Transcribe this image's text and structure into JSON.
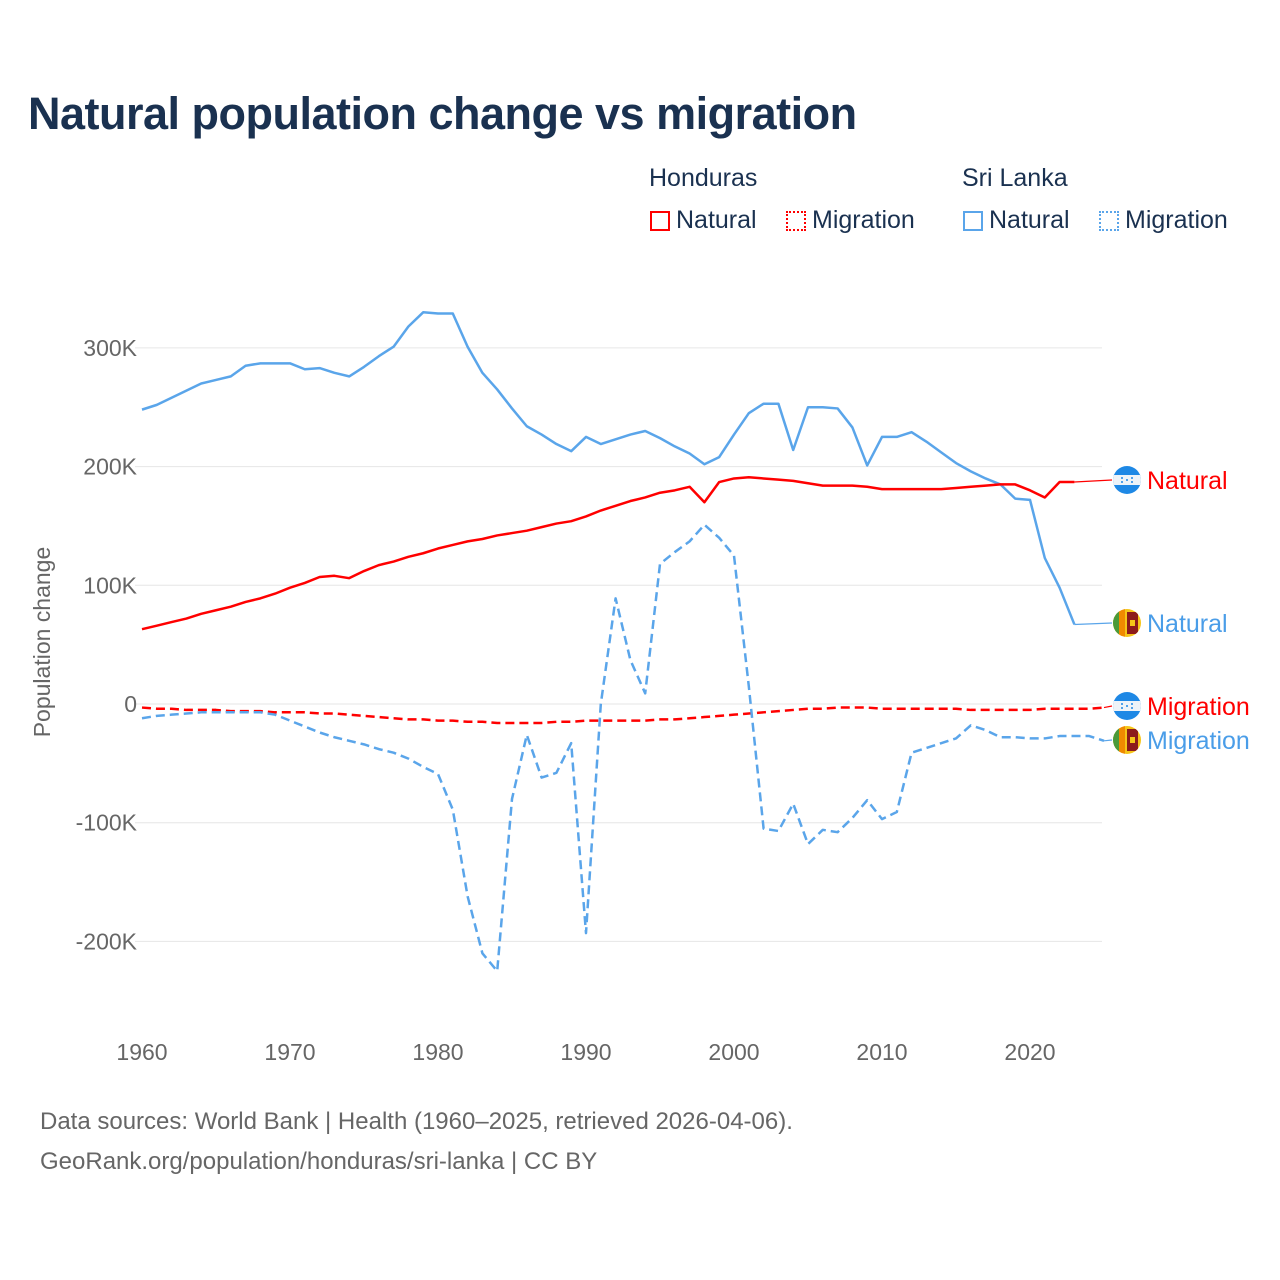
{
  "title": "Natural population change vs migration",
  "legend": {
    "groups": [
      {
        "country": "Honduras",
        "items": [
          "Natural",
          "Migration"
        ],
        "color": "#ff0000"
      },
      {
        "country": "Sri Lanka",
        "items": [
          "Natural",
          "Migration"
        ],
        "color": "#5aa5ea"
      }
    ]
  },
  "footer": {
    "line1": "Data sources: World Bank | Health (1960–2025, retrieved 2026-04-06).",
    "line2": "GeoRank.org/population/honduras/sri-lanka | CC BY"
  },
  "chart_data": {
    "type": "line",
    "title": "Natural population change vs migration",
    "xlabel": "",
    "ylabel": "Population change",
    "xlim": [
      1960,
      2025
    ],
    "ylim": [
      -250000,
      330000
    ],
    "x_ticks": [
      1960,
      1970,
      1980,
      1990,
      2000,
      2010,
      2020
    ],
    "x_tick_labels": [
      "1960",
      "1970",
      "1980",
      "1990",
      "2000",
      "2010",
      "2020"
    ],
    "y_ticks": [
      300000,
      200000,
      100000,
      0,
      -100000,
      -200000
    ],
    "y_tick_labels": [
      "300K",
      "200K",
      "100K",
      "0",
      "-100K",
      "-200K"
    ],
    "grid": true,
    "series": [
      {
        "name": "Sri Lanka Natural",
        "end_label": "Natural",
        "country": "Sri Lanka",
        "kind": "natural",
        "color": "#5aa5ea",
        "dash": false,
        "x_start": 1960,
        "values_k": [
          248,
          252,
          258,
          264,
          270,
          273,
          276,
          285,
          287,
          287,
          287,
          282,
          283,
          279,
          276,
          284,
          293,
          301,
          318,
          330,
          329,
          329,
          301,
          279,
          265,
          249,
          234,
          227,
          219,
          213,
          225,
          219,
          223,
          227,
          230,
          224,
          217,
          211,
          202,
          208,
          227,
          245,
          253,
          253,
          214,
          250,
          250,
          249,
          233,
          201,
          225,
          225,
          229,
          221,
          212,
          203,
          196,
          190,
          185,
          173,
          172,
          123,
          98,
          67
        ]
      },
      {
        "name": "Honduras Natural",
        "end_label": "Natural",
        "country": "Honduras",
        "kind": "natural",
        "color": "#ff0000",
        "dash": false,
        "x_start": 1960,
        "values_k": [
          63,
          66,
          69,
          72,
          76,
          79,
          82,
          86,
          89,
          93,
          98,
          102,
          107,
          108,
          106,
          112,
          117,
          120,
          124,
          127,
          131,
          134,
          137,
          139,
          142,
          144,
          146,
          149,
          152,
          154,
          158,
          163,
          167,
          171,
          174,
          178,
          180,
          183,
          170,
          187,
          190,
          191,
          190,
          189,
          188,
          186,
          184,
          184,
          184,
          183,
          181,
          181,
          181,
          181,
          181,
          182,
          183,
          184,
          185,
          185,
          180,
          174,
          187,
          187
        ]
      },
      {
        "name": "Honduras Migration",
        "end_label": "Migration",
        "country": "Honduras",
        "kind": "migration",
        "color": "#ff0000",
        "dash": true,
        "x_start": 1960,
        "values_k": [
          -3,
          -4,
          -4,
          -5,
          -5,
          -5,
          -6,
          -6,
          -6,
          -7,
          -7,
          -7,
          -8,
          -8,
          -9,
          -10,
          -11,
          -12,
          -13,
          -13,
          -14,
          -14,
          -15,
          -15,
          -16,
          -16,
          -16,
          -16,
          -15,
          -15,
          -14,
          -14,
          -14,
          -14,
          -14,
          -13,
          -13,
          -12,
          -11,
          -10,
          -9,
          -8,
          -7,
          -6,
          -5,
          -4,
          -4,
          -3,
          -3,
          -3,
          -4,
          -4,
          -4,
          -4,
          -4,
          -4,
          -5,
          -5,
          -5,
          -5,
          -5,
          -4,
          -4,
          -4,
          -4,
          -3
        ]
      },
      {
        "name": "Sri Lanka Migration",
        "end_label": "Migration",
        "country": "Sri Lanka",
        "kind": "migration",
        "color": "#5aa5ea",
        "dash": true,
        "x_start": 1960,
        "values_k": [
          -12,
          -10,
          -9,
          -8,
          -7,
          -7,
          -7,
          -7,
          -7,
          -9,
          -14,
          -19,
          -24,
          -28,
          -31,
          -34,
          -38,
          -41,
          -46,
          -53,
          -59,
          -89,
          -162,
          -210,
          -225,
          -80,
          -26,
          -62,
          -58,
          -33,
          -193,
          0,
          89,
          37,
          9,
          118,
          128,
          137,
          151,
          140,
          125,
          15,
          -105,
          -107,
          -84,
          -118,
          -106,
          -108,
          -96,
          -81,
          -97,
          -91,
          -41,
          -37,
          -33,
          -29,
          -18,
          -22,
          -28,
          -28,
          -29,
          -29,
          -27,
          -27,
          -27,
          -31
        ]
      }
    ]
  }
}
